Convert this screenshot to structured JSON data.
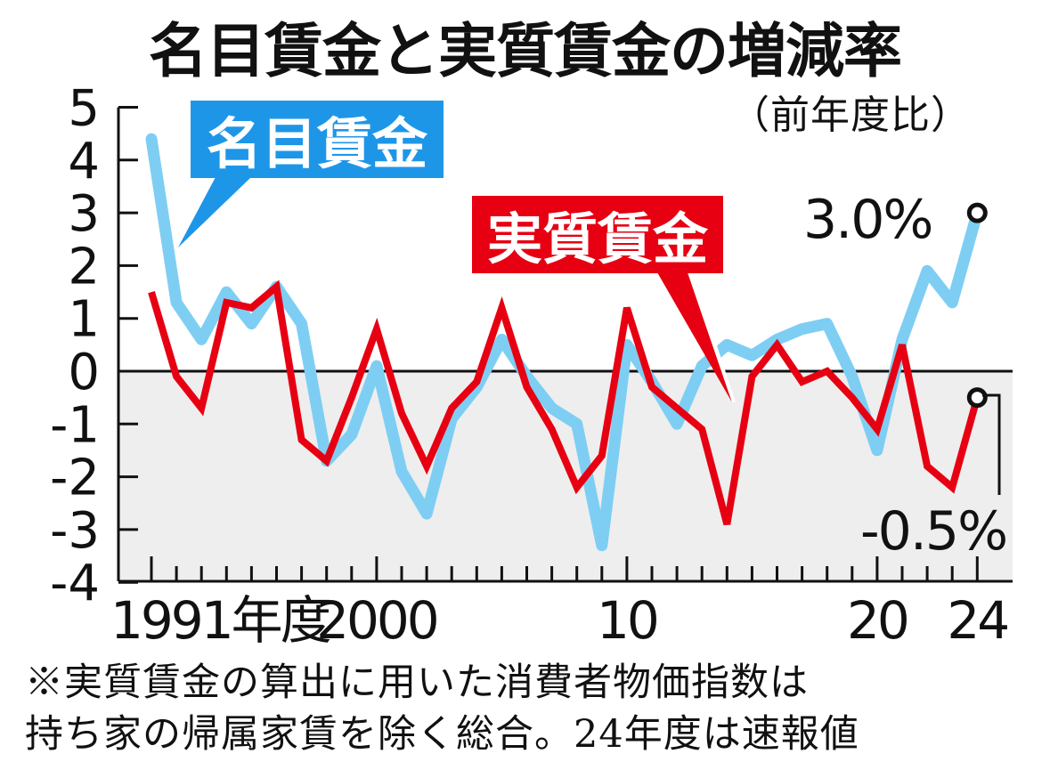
{
  "title": "名目賃金と実質賃金の増減率",
  "subtitle": "（前年度比）",
  "legend": {
    "nominal_label": "名目賃金",
    "real_label": "実質賃金"
  },
  "annotations": {
    "nominal_last": "3.0%",
    "real_last": "-0.5%"
  },
  "notes": [
    "※実質賃金の算出に用いた消費者物価指数は",
    "持ち家の帰属家賃を除く総合。24年度は速報値"
  ],
  "colors": {
    "nominal": "#7ECEF4",
    "nominal_callout": "#1E96E8",
    "real": "#E60012",
    "negative_fill": "#EEEEEE",
    "axis": "#111111"
  },
  "chart_data": {
    "type": "line",
    "title": "名目賃金と実質賃金の増減率",
    "subtitle": "（前年度比）",
    "xlabel": "年度",
    "ylabel": "%",
    "ylim": [
      -4,
      5
    ],
    "yticks": [
      5,
      4,
      3,
      2,
      1,
      0,
      -1,
      -2,
      -3,
      -4
    ],
    "xtick_labels": [
      {
        "year": 1991,
        "label": "1991年度"
      },
      {
        "year": 2000,
        "label": "2000"
      },
      {
        "year": 2010,
        "label": "10"
      },
      {
        "year": 2020,
        "label": "20"
      },
      {
        "year": 2024,
        "label": "24"
      }
    ],
    "x": [
      1991,
      1992,
      1993,
      1994,
      1995,
      1996,
      1997,
      1998,
      1999,
      2000,
      2001,
      2002,
      2003,
      2004,
      2005,
      2006,
      2007,
      2008,
      2009,
      2010,
      2011,
      2012,
      2013,
      2014,
      2015,
      2016,
      2017,
      2018,
      2019,
      2020,
      2021,
      2022,
      2023,
      2024
    ],
    "series": [
      {
        "name": "名目賃金",
        "color": "#7ECEF4",
        "values": [
          4.4,
          1.3,
          0.6,
          1.5,
          0.9,
          1.6,
          0.9,
          -1.7,
          -1.2,
          0.1,
          -1.9,
          -2.7,
          -0.9,
          -0.3,
          0.6,
          -0.1,
          -0.7,
          -1.0,
          -3.3,
          0.5,
          -0.2,
          -1.0,
          0.1,
          0.5,
          0.3,
          0.6,
          0.8,
          0.9,
          -0.1,
          -1.5,
          0.6,
          1.9,
          1.3,
          3.0
        ]
      },
      {
        "name": "実質賃金",
        "color": "#E60012",
        "values": [
          1.5,
          -0.1,
          -0.7,
          1.3,
          1.2,
          1.6,
          -1.3,
          -1.7,
          -0.5,
          0.8,
          -0.8,
          -1.8,
          -0.7,
          -0.2,
          1.2,
          -0.3,
          -1.1,
          -2.2,
          -1.6,
          1.2,
          -0.3,
          -0.7,
          -1.1,
          -2.9,
          -0.1,
          0.5,
          -0.2,
          0.0,
          -0.5,
          -1.1,
          0.5,
          -1.8,
          -2.2,
          -0.5
        ]
      }
    ],
    "annotations": [
      {
        "series": "名目賃金",
        "year": 2024,
        "text": "3.0%"
      },
      {
        "series": "実質賃金",
        "year": 2024,
        "text": "-0.5%"
      }
    ],
    "negative_region_shaded": true,
    "grid": false,
    "legend_position": "callouts"
  }
}
